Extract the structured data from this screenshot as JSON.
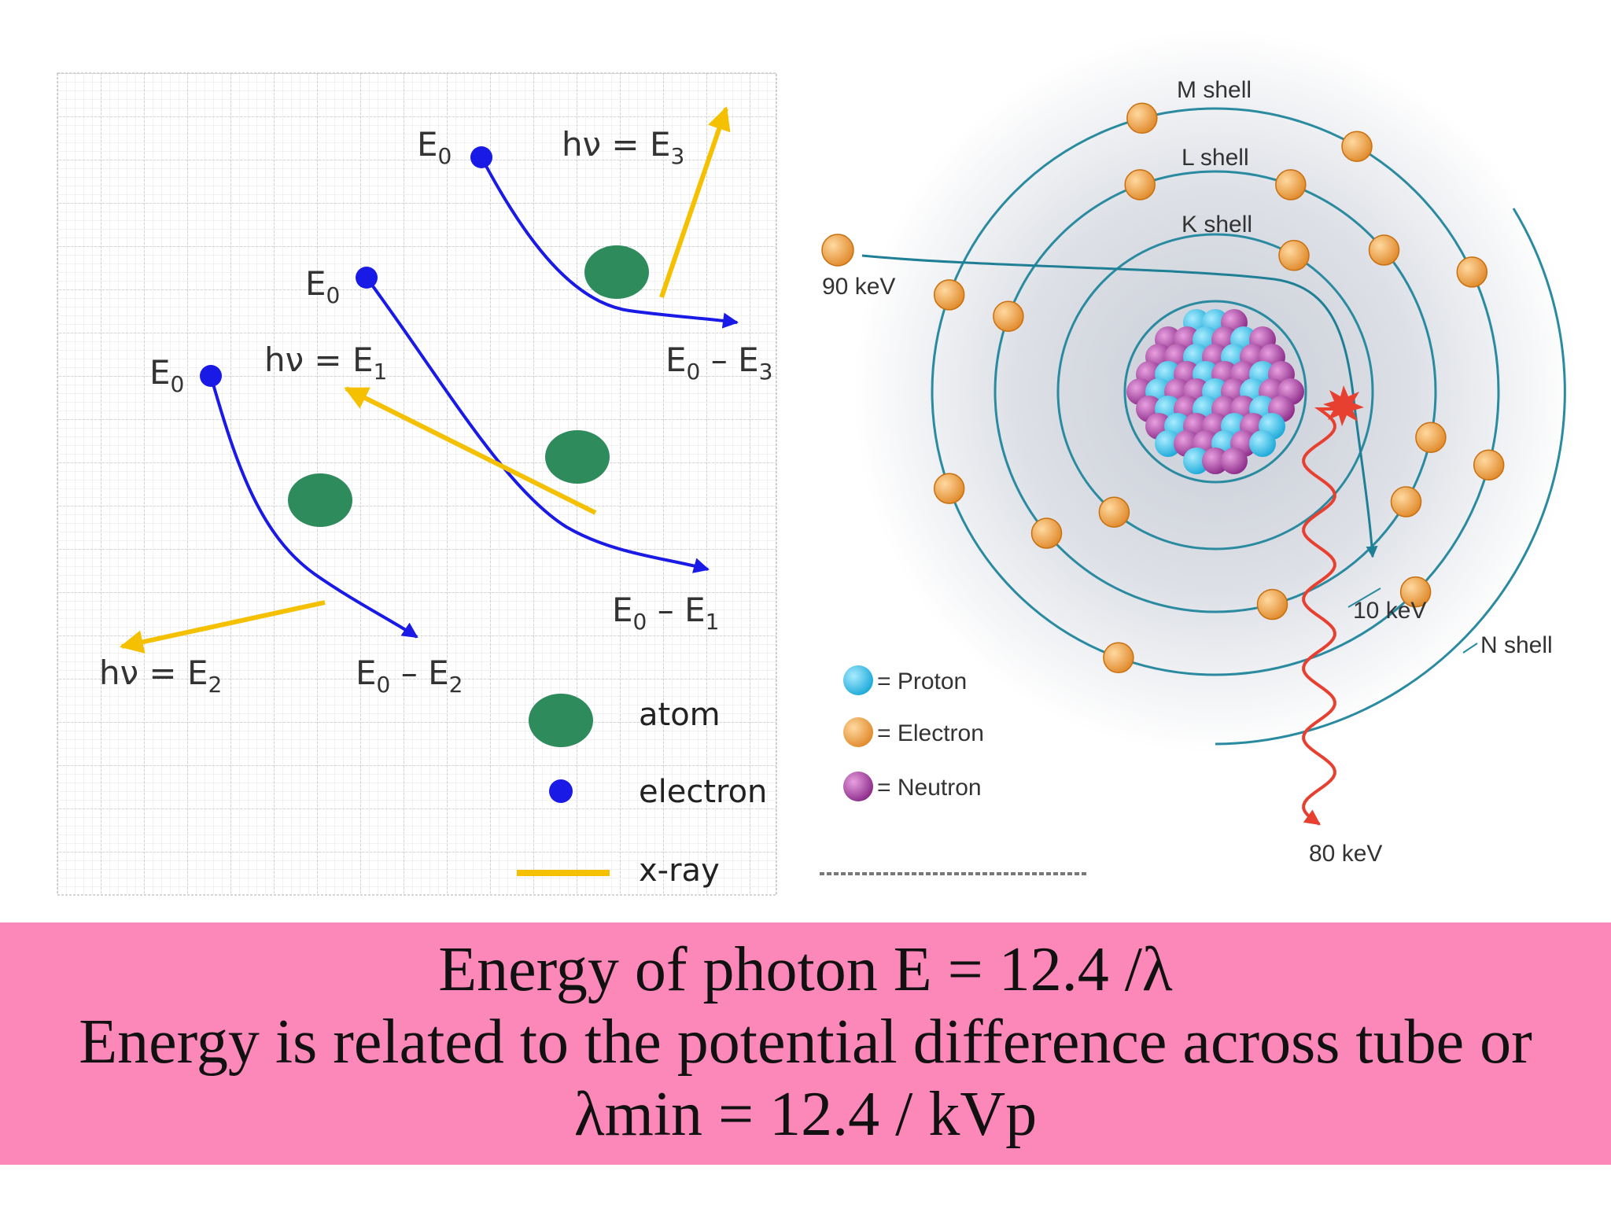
{
  "left_panel": {
    "electron_initial": "E",
    "electron_initial_sub": "0",
    "labels": {
      "e0_a": {
        "main": "E",
        "sub": "0"
      },
      "e0_b": {
        "main": "E",
        "sub": "0"
      },
      "e0_c": {
        "main": "E",
        "sub": "0"
      },
      "hv_e3": {
        "main": "hν = E",
        "sub": "3"
      },
      "hv_e1": {
        "main": "hν = E",
        "sub": "1"
      },
      "hv_e2": {
        "main": "hν = E",
        "sub": "2"
      },
      "e0_minus_e3": {
        "main": "E",
        "sub": "0",
        "rest": " – E",
        "sub2": "3"
      },
      "e0_minus_e1": {
        "main": "E",
        "sub": "0",
        "rest": " – E",
        "sub2": "1"
      },
      "e0_minus_e2": {
        "main": "E",
        "sub": "0",
        "rest": " – E",
        "sub2": "2"
      }
    },
    "legend": {
      "atom": "atom",
      "electron": "electron",
      "xray": "x-ray"
    },
    "colors": {
      "atom": "#2e8b5b",
      "electron": "#1a1ae6",
      "xray": "#f5c000",
      "grid": "#cfcfcf"
    }
  },
  "right_panel": {
    "shell_labels": {
      "m": "M shell",
      "l": "L shell",
      "k": "K shell",
      "n": "N shell"
    },
    "energy_labels": {
      "incoming": "90 keV",
      "outgoing": "10 keV",
      "photon": "80 keV"
    },
    "legend": {
      "proton": "= Proton",
      "electron": "= Electron",
      "neutron": "= Neutron"
    },
    "colors": {
      "proton": "#22b6e0",
      "electron": "#f0a040",
      "neutron": "#a040a0",
      "shell": "#2a8aa0",
      "photon": "#e84030"
    }
  },
  "caption": {
    "line1": "Energy of photon E = 12.4 /λ",
    "line2": "Energy is related to the potential difference across tube or",
    "line3": "λmin = 12.4 / kVp",
    "background": "#fc88b9"
  }
}
